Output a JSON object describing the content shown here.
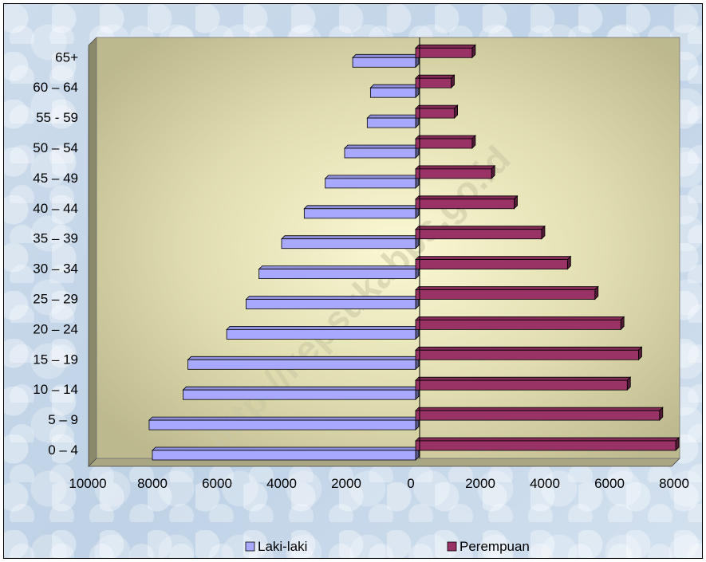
{
  "chart_data": {
    "type": "bar",
    "orientation": "horizontal",
    "title": "",
    "xlabel": "",
    "ylabel": "",
    "categories": [
      "0 – 4",
      "5 – 9",
      "10 – 14",
      "15 – 19",
      "20 – 24",
      "25 – 29",
      "30 – 34",
      "35 – 39",
      "40 – 44",
      "45 – 49",
      "50 – 54",
      "55 - 59",
      "60 – 64",
      "65+"
    ],
    "series": [
      {
        "name": "Laki-laki",
        "color": "#a8a8ff",
        "side": "left",
        "values": [
          8000,
          8100,
          7050,
          6900,
          5700,
          5100,
          4700,
          4000,
          3300,
          2650,
          2050,
          1350,
          1250,
          1800
        ]
      },
      {
        "name": "Perempuan",
        "color": "#993366",
        "side": "right",
        "values": [
          8050,
          7550,
          6550,
          6900,
          6350,
          5550,
          4700,
          3900,
          3050,
          2350,
          1750,
          1200,
          1100,
          1750
        ]
      }
    ],
    "left_ticks": [
      "10000",
      "8000",
      "6000",
      "4000",
      "2000"
    ],
    "center_tick": "0",
    "right_ticks": [
      "2000",
      "4000",
      "6000",
      "8000"
    ],
    "xlim_left": [
      0,
      10000
    ],
    "xlim_right": [
      0,
      8000
    ],
    "left_tick_color": "#ff0000",
    "right_tick_color": "#000000",
    "legend_placement": "bottom",
    "grid": false,
    "watermark": "http://kepsukabps.go.id"
  }
}
